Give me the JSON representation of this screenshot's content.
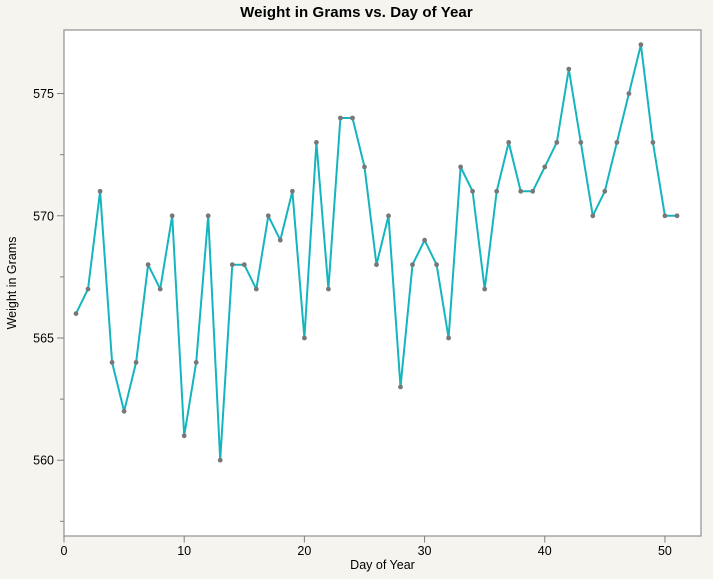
{
  "title": "Weight in Grams vs. Day of Year",
  "chart_data": {
    "type": "line",
    "title": "Weight in Grams vs. Day of Year",
    "xlabel": "Day of Year",
    "ylabel": "Weight in Grams",
    "x": [
      1,
      2,
      3,
      4,
      5,
      6,
      7,
      8,
      9,
      10,
      11,
      12,
      13,
      14,
      15,
      16,
      17,
      18,
      19,
      20,
      21,
      22,
      23,
      24,
      25,
      26,
      27,
      28,
      29,
      30,
      31,
      32,
      33,
      34,
      35,
      36,
      37,
      38,
      39,
      40,
      41,
      42,
      43,
      44,
      45,
      46,
      47,
      48,
      49,
      50,
      51
    ],
    "y": [
      566,
      567,
      571,
      564,
      562,
      564,
      568,
      567,
      570,
      561,
      564,
      570,
      560,
      568,
      568,
      567,
      570,
      569,
      571,
      565,
      573,
      567,
      574,
      574,
      572,
      568,
      570,
      563,
      568,
      569,
      568,
      565,
      572,
      571,
      567,
      571,
      573,
      571,
      571,
      572,
      573,
      576,
      573,
      570,
      571,
      573,
      575,
      577,
      573,
      570,
      570
    ],
    "xlim": [
      0,
      53
    ],
    "ylim": [
      556.9,
      577.6
    ],
    "x_ticks": [
      0,
      10,
      20,
      30,
      40,
      50
    ],
    "y_ticks_major": [
      560,
      565,
      570,
      575
    ],
    "y_ticks_minor": [
      557.5,
      562.5,
      567.5,
      572.5
    ],
    "grid": false,
    "legend": "none",
    "colors": {
      "line": "#15b5bf",
      "marker": "#787878",
      "page_background": "#f5f4ee",
      "plot_background": "#ffffff",
      "frame": "#999999",
      "tick": "#808080",
      "text": "#000000"
    }
  }
}
